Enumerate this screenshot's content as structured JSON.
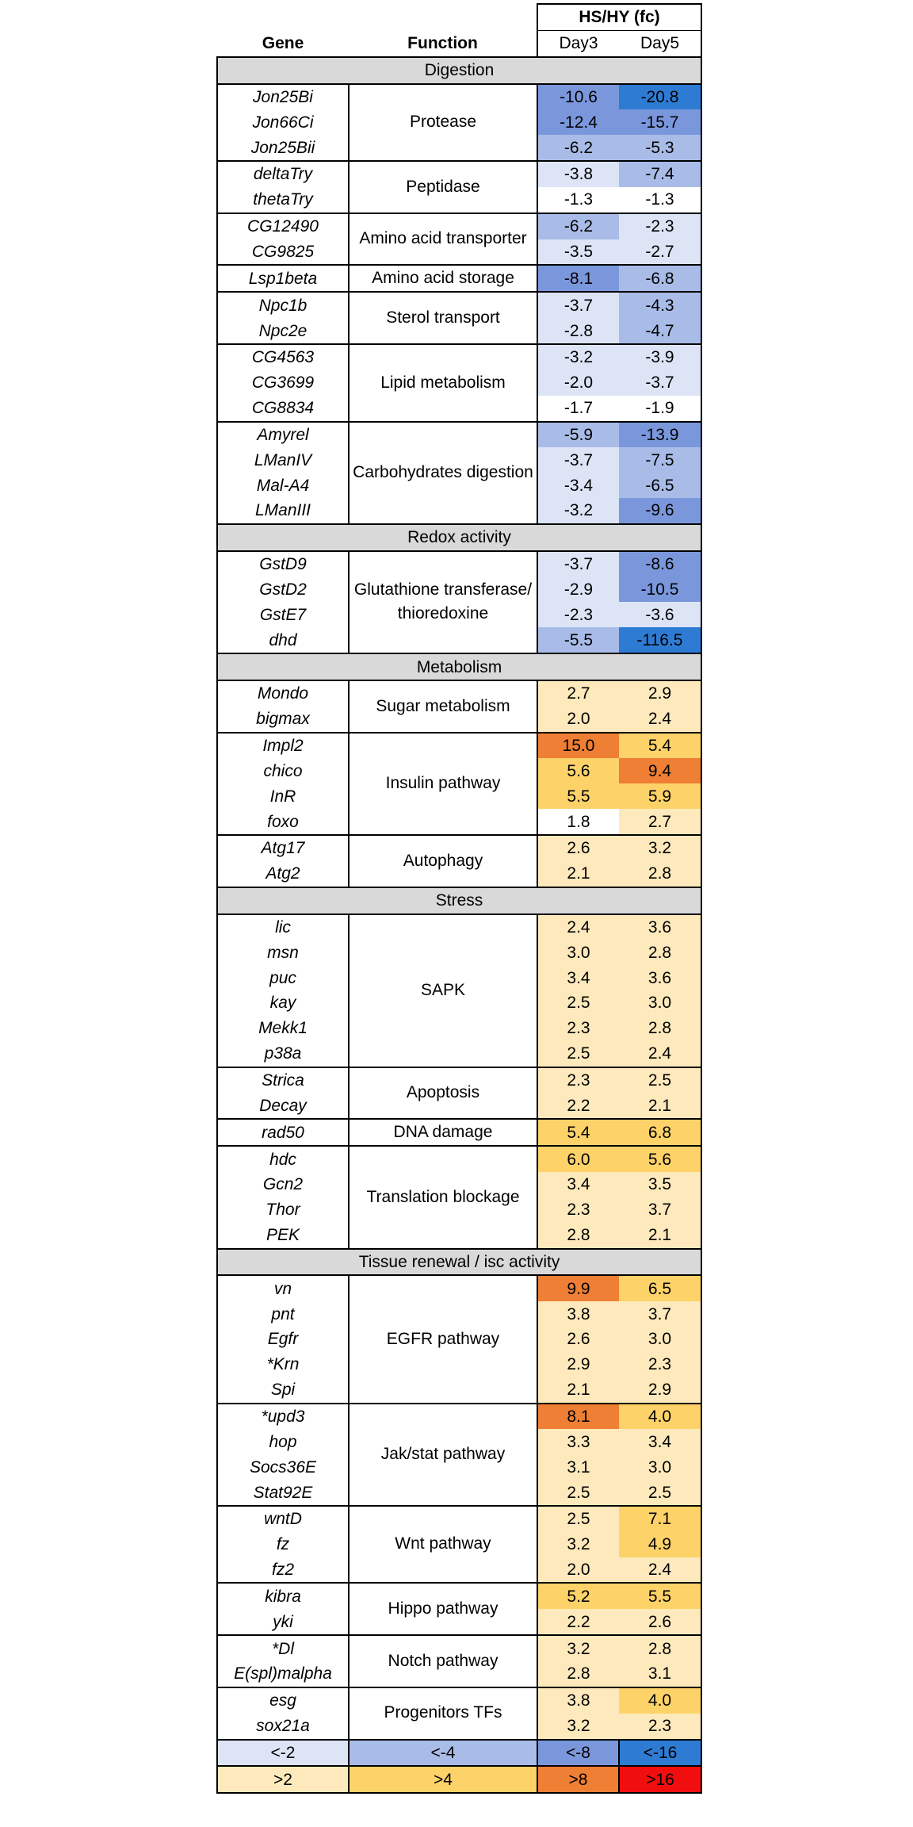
{
  "header": {
    "gene_label": "Gene",
    "function_label": "Function",
    "fc_label": "HS/HY (fc)",
    "day3_label": "Day3",
    "day5_label": "Day5"
  },
  "colors": {
    "neg2": "#dce4f5",
    "neg4": "#a9bce8",
    "neg8": "#7b97dc",
    "neg16": "#2e7bd4",
    "pos2": "#fde9bb",
    "pos4": "#fdd268",
    "pos8": "#ee7f34",
    "pos16": "#f10e0e",
    "none": "#ffffff"
  },
  "sections": [
    {
      "title": "Digestion",
      "groups": [
        {
          "function": "Protease",
          "genes": [
            {
              "name": "Jon25Bi",
              "day3": "-10.6",
              "day5": "-20.8"
            },
            {
              "name": "Jon66Ci",
              "day3": "-12.4",
              "day5": "-15.7"
            },
            {
              "name": "Jon25Bii",
              "day3": "-6.2",
              "day5": "-5.3"
            }
          ]
        },
        {
          "function": "Peptidase",
          "genes": [
            {
              "name": "deltaTry",
              "day3": "-3.8",
              "day5": "-7.4"
            },
            {
              "name": "thetaTry",
              "day3": "-1.3",
              "day5": "-1.3"
            }
          ]
        },
        {
          "function": "Amino acid transporter",
          "genes": [
            {
              "name": "CG12490",
              "day3": "-6.2",
              "day5": "-2.3"
            },
            {
              "name": "CG9825",
              "day3": "-3.5",
              "day5": "-2.7"
            }
          ]
        },
        {
          "function": "Amino acid storage",
          "genes": [
            {
              "name": "Lsp1beta",
              "day3": "-8.1",
              "day5": "-6.8"
            }
          ]
        },
        {
          "function": "Sterol transport",
          "genes": [
            {
              "name": "Npc1b",
              "day3": "-3.7",
              "day5": "-4.3"
            },
            {
              "name": "Npc2e",
              "day3": "-2.8",
              "day5": "-4.7"
            }
          ]
        },
        {
          "function": "Lipid metabolism",
          "genes": [
            {
              "name": "CG4563",
              "day3": "-3.2",
              "day5": "-3.9"
            },
            {
              "name": "CG3699",
              "day3": "-2.0",
              "day5": "-3.7"
            },
            {
              "name": "CG8834",
              "day3": "-1.7",
              "day5": "-1.9"
            }
          ]
        },
        {
          "function": "Carbohydrates digestion",
          "genes": [
            {
              "name": "Amyrel",
              "day3": "-5.9",
              "day5": "-13.9"
            },
            {
              "name": "LManIV",
              "day3": "-3.7",
              "day5": "-7.5"
            },
            {
              "name": "Mal-A4",
              "day3": "-3.4",
              "day5": "-6.5"
            },
            {
              "name": "LManIII",
              "day3": "-3.2",
              "day5": "-9.6"
            }
          ]
        }
      ]
    },
    {
      "title": "Redox activity",
      "groups": [
        {
          "function": "Glutathione transferase/ thioredoxine",
          "genes": [
            {
              "name": "GstD9",
              "day3": "-3.7",
              "day5": "-8.6"
            },
            {
              "name": "GstD2",
              "day3": "-2.9",
              "day5": "-10.5"
            },
            {
              "name": "GstE7",
              "day3": "-2.3",
              "day5": "-3.6"
            },
            {
              "name": "dhd",
              "day3": "-5.5",
              "day5": "-116.5"
            }
          ]
        }
      ]
    },
    {
      "title": "Metabolism",
      "groups": [
        {
          "function": "Sugar metabolism",
          "genes": [
            {
              "name": "Mondo",
              "day3": "2.7",
              "day5": "2.9"
            },
            {
              "name": "bigmax",
              "day3": "2.0",
              "day5": "2.4"
            }
          ]
        },
        {
          "function": "Insulin pathway",
          "genes": [
            {
              "name": "Impl2",
              "day3": "15.0",
              "day5": "5.4"
            },
            {
              "name": "chico",
              "day3": "5.6",
              "day5": "9.4"
            },
            {
              "name": "InR",
              "day3": "5.5",
              "day5": "5.9"
            },
            {
              "name": "foxo",
              "day3": "1.8",
              "day5": "2.7"
            }
          ]
        },
        {
          "function": "Autophagy",
          "genes": [
            {
              "name": "Atg17",
              "day3": "2.6",
              "day5": "3.2"
            },
            {
              "name": "Atg2",
              "day3": "2.1",
              "day5": "2.8"
            }
          ]
        }
      ]
    },
    {
      "title": "Stress",
      "groups": [
        {
          "function": "SAPK",
          "genes": [
            {
              "name": "lic",
              "day3": "2.4",
              "day5": "3.6"
            },
            {
              "name": "msn",
              "day3": "3.0",
              "day5": "2.8"
            },
            {
              "name": "puc",
              "day3": "3.4",
              "day5": "3.6"
            },
            {
              "name": "kay",
              "day3": "2.5",
              "day5": "3.0"
            },
            {
              "name": "Mekk1",
              "day3": "2.3",
              "day5": "2.8"
            },
            {
              "name": "p38a",
              "day3": "2.5",
              "day5": "2.4"
            }
          ]
        },
        {
          "function": "Apoptosis",
          "genes": [
            {
              "name": "Strica",
              "day3": "2.3",
              "day5": "2.5"
            },
            {
              "name": "Decay",
              "day3": "2.2",
              "day5": "2.1"
            }
          ]
        },
        {
          "function": "DNA damage",
          "genes": [
            {
              "name": "rad50",
              "day3": "5.4",
              "day5": "6.8"
            }
          ]
        },
        {
          "function": "Translation blockage",
          "genes": [
            {
              "name": "hdc",
              "day3": "6.0",
              "day5": "5.6"
            },
            {
              "name": "Gcn2",
              "day3": "3.4",
              "day5": "3.5"
            },
            {
              "name": "Thor",
              "day3": "2.3",
              "day5": "3.7"
            },
            {
              "name": "PEK",
              "day3": "2.8",
              "day5": "2.1"
            }
          ]
        }
      ]
    },
    {
      "title": "Tissue renewal / isc activity",
      "groups": [
        {
          "function": "EGFR pathway",
          "genes": [
            {
              "name": "vn",
              "day3": "9.9",
              "day5": "6.5"
            },
            {
              "name": "pnt",
              "day3": "3.8",
              "day5": "3.7"
            },
            {
              "name": "Egfr",
              "day3": "2.6",
              "day5": "3.0"
            },
            {
              "name": "*Krn",
              "day3": "2.9",
              "day5": "2.3"
            },
            {
              "name": "Spi",
              "day3": "2.1",
              "day5": "2.9"
            }
          ]
        },
        {
          "function": "Jak/stat pathway",
          "genes": [
            {
              "name": "*upd3",
              "day3": "8.1",
              "day5": "4.0"
            },
            {
              "name": "hop",
              "day3": "3.3",
              "day5": "3.4"
            },
            {
              "name": "Socs36E",
              "day3": "3.1",
              "day5": "3.0"
            },
            {
              "name": "Stat92E",
              "day3": "2.5",
              "day5": "2.5"
            }
          ]
        },
        {
          "function": "Wnt pathway",
          "genes": [
            {
              "name": "wntD",
              "day3": "2.5",
              "day5": "7.1"
            },
            {
              "name": "fz",
              "day3": "3.2",
              "day5": "4.9"
            },
            {
              "name": "fz2",
              "day3": "2.0",
              "day5": "2.4"
            }
          ]
        },
        {
          "function": "Hippo pathway",
          "genes": [
            {
              "name": "kibra",
              "day3": "5.2",
              "day5": "5.5"
            },
            {
              "name": "yki",
              "day3": "2.2",
              "day5": "2.6"
            }
          ]
        },
        {
          "function": "Notch pathway",
          "genes": [
            {
              "name": "*Dl",
              "day3": "3.2",
              "day5": "2.8"
            },
            {
              "name": "E(spl)malpha",
              "day3": "2.8",
              "day5": "3.1"
            }
          ]
        },
        {
          "function": "Progenitors TFs",
          "genes": [
            {
              "name": "esg",
              "day3": "3.8",
              "day5": "4.0"
            },
            {
              "name": "sox21a",
              "day3": "3.2",
              "day5": "2.3"
            }
          ]
        }
      ]
    }
  ],
  "legend": [
    [
      {
        "label": "<-2",
        "color": "neg2"
      },
      {
        "label": "<-4",
        "color": "neg4"
      },
      {
        "label": "<-8",
        "color": "neg8"
      },
      {
        "label": "<-16",
        "color": "neg16"
      }
    ],
    [
      {
        "label": ">2",
        "color": "pos2"
      },
      {
        "label": ">4",
        "color": "pos4"
      },
      {
        "label": ">8",
        "color": "pos8"
      },
      {
        "label": ">16",
        "color": "pos16"
      }
    ]
  ]
}
